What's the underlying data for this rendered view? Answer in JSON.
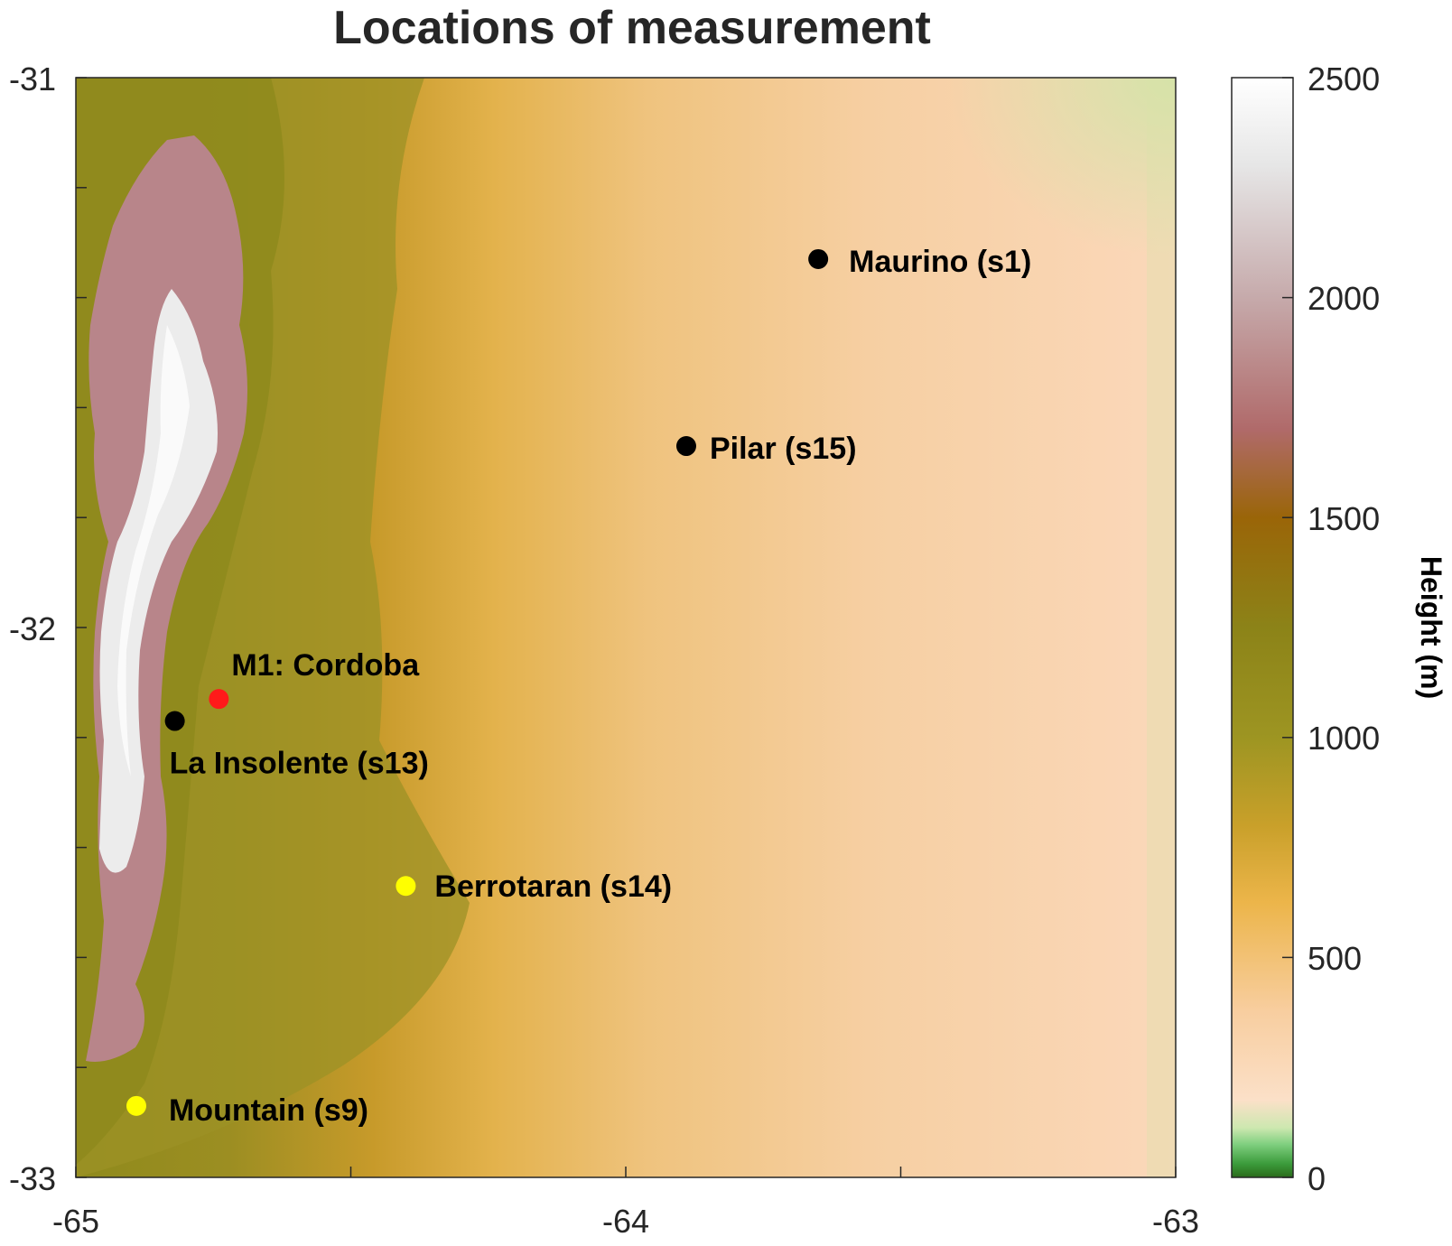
{
  "title": "Locations of measurement",
  "axes": {
    "x_ticks": [
      "-65",
      "-64",
      "-63"
    ],
    "y_ticks": [
      "-31",
      "-32",
      "-33"
    ],
    "xlim": [
      -65,
      -63
    ],
    "ylim": [
      -33,
      -31
    ]
  },
  "colorbar": {
    "label": "Height (m)",
    "ticks": [
      "2500",
      "2000",
      "1500",
      "1000",
      "500",
      "0"
    ],
    "range": [
      0,
      2500
    ]
  },
  "sites": [
    {
      "label": "Maurino (s1)",
      "lon": -63.65,
      "lat": -31.33,
      "color": "#000000"
    },
    {
      "label": "Pilar (s15)",
      "lon": -63.89,
      "lat": -31.67,
      "color": "#000000"
    },
    {
      "label": "M1: Cordoba",
      "lon": -64.74,
      "lat": -32.13,
      "color": "#ff1a1a"
    },
    {
      "label": "La Insolente (s13)",
      "lon": -64.82,
      "lat": -32.17,
      "color": "#000000"
    },
    {
      "label": "Berrotaran (s14)",
      "lon": -64.4,
      "lat": -32.47,
      "color": "#ffff00"
    },
    {
      "label": "Mountain (s9)",
      "lon": -64.89,
      "lat": -32.87,
      "color": "#ffff00"
    }
  ],
  "colors": {
    "plain_low": "#fbd6b8",
    "plain_mid": "#e9b862",
    "foothills": "#a89228",
    "sierra": "#8f8a1c",
    "peaks_pink": "#b88088",
    "summit_white": "#f4f4f4",
    "lowland_green": "#d4e3a8",
    "marker_black": "#000000",
    "marker_red": "#ff1a1a",
    "marker_yellow": "#ffff00"
  }
}
